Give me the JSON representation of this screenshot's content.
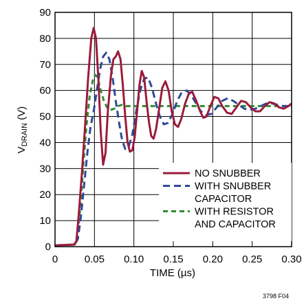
{
  "chart_data": {
    "type": "line",
    "xlabel": "TIME (µs)",
    "ylabel": {
      "main": "V",
      "sub": "DRAIN",
      "unit": " (V)"
    },
    "xlim": [
      0,
      0.3
    ],
    "ylim": [
      0,
      90
    ],
    "xticks": [
      "0",
      "0.05",
      "0.10",
      "0.15",
      "0.20",
      "0.25",
      "0.30"
    ],
    "yticks": [
      "0",
      "10",
      "20",
      "30",
      "40",
      "50",
      "60",
      "70",
      "80",
      "90"
    ],
    "grid": true,
    "legend_placement": "bottom-right",
    "figure_id": "3798 F04",
    "series": [
      {
        "name": "NO SNUBBER",
        "legend_lines": [
          "NO SNUBBER"
        ],
        "color": "#9b1b3a",
        "dash": "solid",
        "points": [
          [
            0.0,
            0.5
          ],
          [
            0.024,
            0.8
          ],
          [
            0.027,
            2
          ],
          [
            0.03,
            12
          ],
          [
            0.034,
            28
          ],
          [
            0.038,
            46
          ],
          [
            0.042,
            65
          ],
          [
            0.046,
            80
          ],
          [
            0.049,
            84
          ],
          [
            0.052,
            80
          ],
          [
            0.055,
            64
          ],
          [
            0.058,
            44
          ],
          [
            0.061,
            31.5
          ],
          [
            0.064,
            36
          ],
          [
            0.067,
            52
          ],
          [
            0.071,
            66
          ],
          [
            0.074,
            72
          ],
          [
            0.077,
            73
          ],
          [
            0.08,
            75
          ],
          [
            0.083,
            72
          ],
          [
            0.086,
            62
          ],
          [
            0.089,
            50
          ],
          [
            0.092,
            40
          ],
          [
            0.095,
            36.5
          ],
          [
            0.098,
            37
          ],
          [
            0.101,
            42
          ],
          [
            0.104,
            52
          ],
          [
            0.107,
            62
          ],
          [
            0.11,
            67.5
          ],
          [
            0.113,
            65
          ],
          [
            0.116,
            56
          ],
          [
            0.119,
            48
          ],
          [
            0.122,
            42.5
          ],
          [
            0.125,
            41.5
          ],
          [
            0.128,
            45
          ],
          [
            0.132,
            53
          ],
          [
            0.136,
            61
          ],
          [
            0.14,
            63.5
          ],
          [
            0.144,
            60
          ],
          [
            0.148,
            52
          ],
          [
            0.152,
            47
          ],
          [
            0.156,
            46
          ],
          [
            0.16,
            49
          ],
          [
            0.165,
            55
          ],
          [
            0.17,
            59
          ],
          [
            0.174,
            59.5
          ],
          [
            0.179,
            56
          ],
          [
            0.184,
            52
          ],
          [
            0.188,
            49.5
          ],
          [
            0.192,
            50
          ],
          [
            0.197,
            54
          ],
          [
            0.202,
            57.5
          ],
          [
            0.207,
            57
          ],
          [
            0.212,
            54
          ],
          [
            0.218,
            51.5
          ],
          [
            0.224,
            51
          ],
          [
            0.23,
            53.5
          ],
          [
            0.236,
            56
          ],
          [
            0.242,
            55.5
          ],
          [
            0.248,
            53.5
          ],
          [
            0.254,
            52
          ],
          [
            0.26,
            52
          ],
          [
            0.266,
            54
          ],
          [
            0.272,
            55.5
          ],
          [
            0.278,
            55
          ],
          [
            0.284,
            53.5
          ],
          [
            0.29,
            53
          ],
          [
            0.296,
            54
          ],
          [
            0.3,
            55
          ]
        ]
      },
      {
        "name": "WITH SNUBBER CAPACITOR",
        "legend_lines": [
          "WITH SNUBBER",
          "CAPACITOR"
        ],
        "color": "#2b4a9a",
        "dash": "10,6",
        "points": [
          [
            0.0,
            0.5
          ],
          [
            0.025,
            0.8
          ],
          [
            0.029,
            3
          ],
          [
            0.033,
            12
          ],
          [
            0.037,
            24
          ],
          [
            0.041,
            36
          ],
          [
            0.045,
            46
          ],
          [
            0.049,
            52
          ],
          [
            0.053,
            60
          ],
          [
            0.057,
            68
          ],
          [
            0.061,
            73
          ],
          [
            0.065,
            74.5
          ],
          [
            0.069,
            72
          ],
          [
            0.073,
            65
          ],
          [
            0.077,
            56
          ],
          [
            0.081,
            48
          ],
          [
            0.085,
            41
          ],
          [
            0.089,
            37.5
          ],
          [
            0.093,
            38
          ],
          [
            0.098,
            43
          ],
          [
            0.103,
            52
          ],
          [
            0.108,
            60
          ],
          [
            0.113,
            64.5
          ],
          [
            0.118,
            65
          ],
          [
            0.123,
            61
          ],
          [
            0.128,
            55
          ],
          [
            0.133,
            50
          ],
          [
            0.138,
            47
          ],
          [
            0.143,
            47.5
          ],
          [
            0.149,
            51
          ],
          [
            0.155,
            56
          ],
          [
            0.161,
            59.5
          ],
          [
            0.167,
            60
          ],
          [
            0.173,
            58
          ],
          [
            0.179,
            55
          ],
          [
            0.185,
            52
          ],
          [
            0.191,
            50.5
          ],
          [
            0.198,
            51
          ],
          [
            0.205,
            53.5
          ],
          [
            0.212,
            56
          ],
          [
            0.219,
            57
          ],
          [
            0.226,
            56
          ],
          [
            0.233,
            54.5
          ],
          [
            0.24,
            53
          ],
          [
            0.247,
            52.5
          ],
          [
            0.254,
            53
          ],
          [
            0.261,
            54
          ],
          [
            0.268,
            55
          ],
          [
            0.275,
            55
          ],
          [
            0.282,
            54.5
          ],
          [
            0.289,
            54
          ],
          [
            0.296,
            54
          ],
          [
            0.3,
            54
          ]
        ]
      },
      {
        "name": "WITH RESISTOR AND CAPACITOR",
        "legend_lines": [
          "WITH RESISTOR",
          "AND CAPACITOR"
        ],
        "color": "#2e8a33",
        "dash": "7,5",
        "points": [
          [
            0.0,
            0.5
          ],
          [
            0.025,
            0.8
          ],
          [
            0.028,
            3
          ],
          [
            0.032,
            15
          ],
          [
            0.036,
            32
          ],
          [
            0.04,
            47
          ],
          [
            0.044,
            58
          ],
          [
            0.048,
            64
          ],
          [
            0.051,
            66
          ],
          [
            0.054,
            65
          ],
          [
            0.058,
            60
          ],
          [
            0.062,
            56
          ],
          [
            0.066,
            53.5
          ],
          [
            0.07,
            52.5
          ],
          [
            0.075,
            53
          ],
          [
            0.08,
            54
          ],
          [
            0.085,
            54.5
          ],
          [
            0.09,
            54
          ],
          [
            0.1,
            54
          ],
          [
            0.12,
            54
          ],
          [
            0.15,
            54
          ],
          [
            0.2,
            54
          ],
          [
            0.25,
            54
          ],
          [
            0.3,
            54
          ]
        ]
      }
    ]
  }
}
